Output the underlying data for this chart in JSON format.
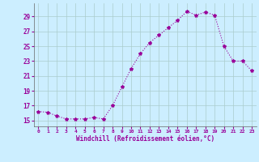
{
  "x": [
    0,
    1,
    2,
    3,
    4,
    5,
    6,
    7,
    8,
    9,
    10,
    11,
    12,
    13,
    14,
    15,
    16,
    17,
    18,
    19,
    20,
    21,
    22,
    23
  ],
  "y": [
    16.2,
    16.1,
    15.6,
    15.2,
    15.2,
    15.2,
    15.4,
    15.2,
    17.0,
    19.5,
    22.0,
    24.0,
    25.5,
    26.5,
    27.5,
    28.5,
    29.7,
    29.2,
    29.6,
    29.2,
    25.0,
    23.0,
    23.0,
    21.7
  ],
  "line_color": "#990099",
  "marker": "*",
  "marker_size": 3,
  "bg_color": "#cceeff",
  "grid_color": "#aacccc",
  "xlabel": "Windchill (Refroidissement éolien,°C)",
  "ylabel_ticks": [
    15,
    17,
    19,
    21,
    23,
    25,
    27,
    29
  ],
  "ylim": [
    14.2,
    30.8
  ],
  "xlim": [
    -0.5,
    23.5
  ],
  "xtick_labels": [
    "0",
    "1",
    "2",
    "3",
    "4",
    "5",
    "6",
    "7",
    "8",
    "9",
    "10",
    "11",
    "12",
    "13",
    "14",
    "15",
    "16",
    "17",
    "18",
    "19",
    "20",
    "21",
    "22",
    "23"
  ],
  "tick_color": "#990099",
  "label_color": "#990099"
}
